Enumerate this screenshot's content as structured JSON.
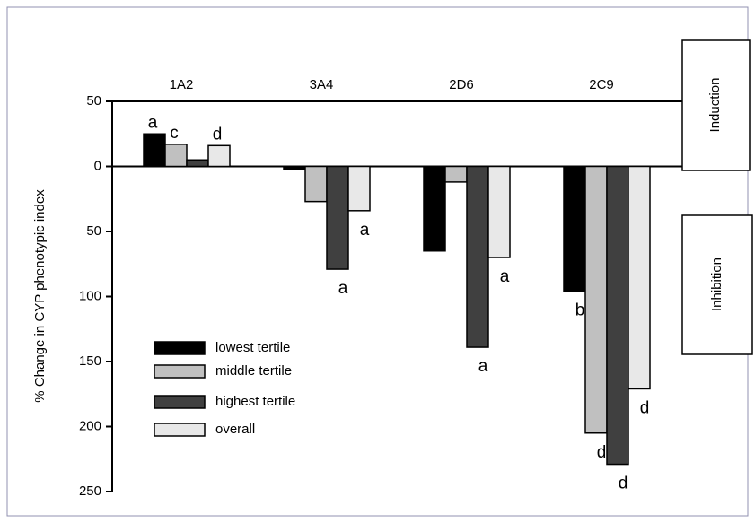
{
  "chart_data": {
    "type": "bar",
    "categories": [
      "1A2",
      "3A4",
      "2D6",
      "2C9"
    ],
    "y_label": "% Change in CYP phenotypic index",
    "ylim": [
      -250,
      50
    ],
    "yticks": [
      50,
      0,
      {
        "value": -50,
        "label": "50"
      },
      {
        "value": -100,
        "label": "100"
      },
      {
        "value": -150,
        "label": "150"
      },
      {
        "value": -200,
        "label": "200"
      },
      {
        "value": -250,
        "label": "250"
      }
    ],
    "side_labels": [
      "Induction",
      "Inhibition"
    ],
    "series": [
      {
        "name": "lowest tertile",
        "color": "#000000",
        "values": [
          25,
          -2,
          -65,
          -96
        ],
        "labels": [
          "a",
          null,
          null,
          "b"
        ]
      },
      {
        "name": "middle tertile",
        "color": "#c0c0c0",
        "values": [
          17,
          -27,
          -12,
          -205
        ],
        "labels": [
          "c",
          null,
          null,
          "d"
        ]
      },
      {
        "name": "highest tertile",
        "color": "#404040",
        "values": [
          5,
          -79,
          -139,
          -229
        ],
        "labels": [
          null,
          "a",
          "a",
          "d"
        ]
      },
      {
        "name": "overall",
        "color": "#e8e8e8",
        "values": [
          16,
          -34,
          -70,
          -171
        ],
        "labels": [
          "d",
          "a",
          "a",
          "d"
        ]
      }
    ],
    "legend": "lower-left"
  }
}
